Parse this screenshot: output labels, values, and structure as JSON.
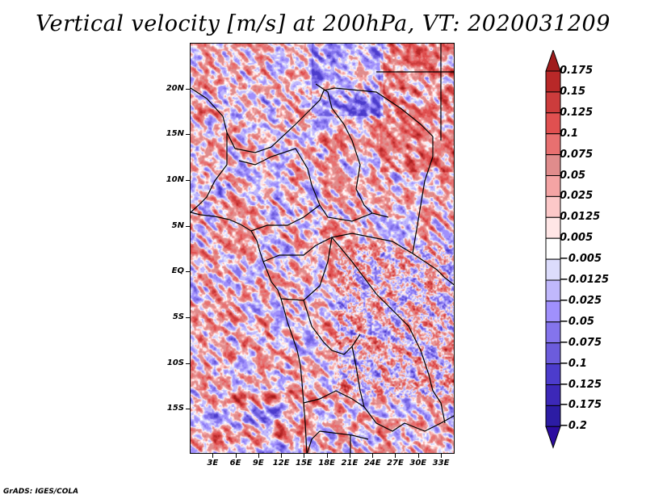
{
  "title": "Vertical velocity [m/s] at 200hPa, VT: 2020031209",
  "credit": "GrADS: IGES/COLA",
  "map": {
    "variable": "Vertical velocity",
    "units": "m/s",
    "level": "200hPa",
    "valid_time": "2020031209",
    "lon_range": [
      0,
      34.8
    ],
    "lat_range": [
      -19.9,
      25
    ],
    "y_ticks": [
      {
        "label": "20N",
        "lat": 20
      },
      {
        "label": "15N",
        "lat": 15
      },
      {
        "label": "10N",
        "lat": 10
      },
      {
        "label": "5N",
        "lat": 5
      },
      {
        "label": "EQ",
        "lat": 0
      },
      {
        "label": "5S",
        "lat": -5
      },
      {
        "label": "10S",
        "lat": -10
      },
      {
        "label": "15S",
        "lat": -15
      }
    ],
    "x_ticks": [
      {
        "label": "3E",
        "lon": 3
      },
      {
        "label": "6E",
        "lon": 6
      },
      {
        "label": "9E",
        "lon": 9
      },
      {
        "label": "12E",
        "lon": 12
      },
      {
        "label": "15E",
        "lon": 15
      },
      {
        "label": "18E",
        "lon": 18
      },
      {
        "label": "21E",
        "lon": 21
      },
      {
        "label": "24E",
        "lon": 24
      },
      {
        "label": "27E",
        "lon": 27
      },
      {
        "label": "30E",
        "lon": 30
      },
      {
        "label": "33E",
        "lon": 33
      }
    ]
  },
  "colorbar": {
    "levels": [
      {
        "label": "0.175",
        "color": "#a01c1c"
      },
      {
        "label": "0.15",
        "color": "#b82828"
      },
      {
        "label": "0.125",
        "color": "#d03c3c"
      },
      {
        "label": "0.1",
        "color": "#e45454"
      },
      {
        "label": "0.075",
        "color": "#e87474"
      },
      {
        "label": "0.05",
        "color": "#e48c8c"
      },
      {
        "label": "0.025",
        "color": "#f4a0a0"
      },
      {
        "label": "0.0125",
        "color": "#fcc8c8"
      },
      {
        "label": "0.005",
        "color": "#ffe6e6"
      },
      {
        "label": "-0.005",
        "color": "#ffffff"
      },
      {
        "label": "-0.0125",
        "color": "#dcdcfc"
      },
      {
        "label": "-0.025",
        "color": "#c0b8fc"
      },
      {
        "label": "-0.05",
        "color": "#a090fc"
      },
      {
        "label": "-0.075",
        "color": "#8474ec"
      },
      {
        "label": "-0.1",
        "color": "#6c5cdc"
      },
      {
        "label": "-0.125",
        "color": "#4c3ccc"
      },
      {
        "label": "-0.175",
        "color": "#3c28b8"
      },
      {
        "label": "-0.2",
        "color": "#2c1ca4"
      }
    ],
    "over_color": "#a01c1c",
    "under_color": "#2c0ca0",
    "bins": [
      "#ffffff"
    ]
  }
}
